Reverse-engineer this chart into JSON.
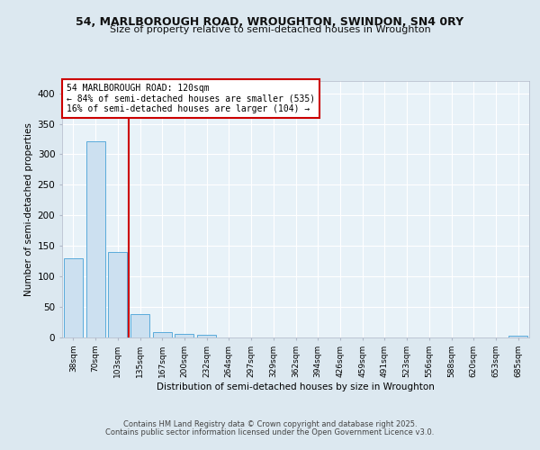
{
  "title1": "54, MARLBOROUGH ROAD, WROUGHTON, SWINDON, SN4 0RY",
  "title2": "Size of property relative to semi-detached houses in Wroughton",
  "xlabel": "Distribution of semi-detached houses by size in Wroughton",
  "ylabel": "Number of semi-detached properties",
  "categories": [
    "38sqm",
    "70sqm",
    "103sqm",
    "135sqm",
    "167sqm",
    "200sqm",
    "232sqm",
    "264sqm",
    "297sqm",
    "329sqm",
    "362sqm",
    "394sqm",
    "426sqm",
    "459sqm",
    "491sqm",
    "523sqm",
    "556sqm",
    "588sqm",
    "620sqm",
    "653sqm",
    "685sqm"
  ],
  "values": [
    130,
    322,
    140,
    38,
    9,
    6,
    4,
    0,
    0,
    0,
    0,
    0,
    0,
    0,
    0,
    0,
    0,
    0,
    0,
    0,
    3
  ],
  "bar_color": "#cce0f0",
  "bar_edge_color": "#5aabdb",
  "subject_label": "54 MARLBOROUGH ROAD: 120sqm",
  "annotation_smaller": "← 84% of semi-detached houses are smaller (535)",
  "annotation_larger": "16% of semi-detached houses are larger (104) →",
  "annotation_box_color": "#ffffff",
  "annotation_box_edge": "#cc0000",
  "vline_color": "#cc0000",
  "vline_x": 2.5,
  "ylim": [
    0,
    420
  ],
  "yticks": [
    0,
    50,
    100,
    150,
    200,
    250,
    300,
    350,
    400
  ],
  "footer1": "Contains HM Land Registry data © Crown copyright and database right 2025.",
  "footer2": "Contains public sector information licensed under the Open Government Licence v3.0.",
  "bg_color": "#dce8f0",
  "plot_bg_color": "#e8f2f8"
}
